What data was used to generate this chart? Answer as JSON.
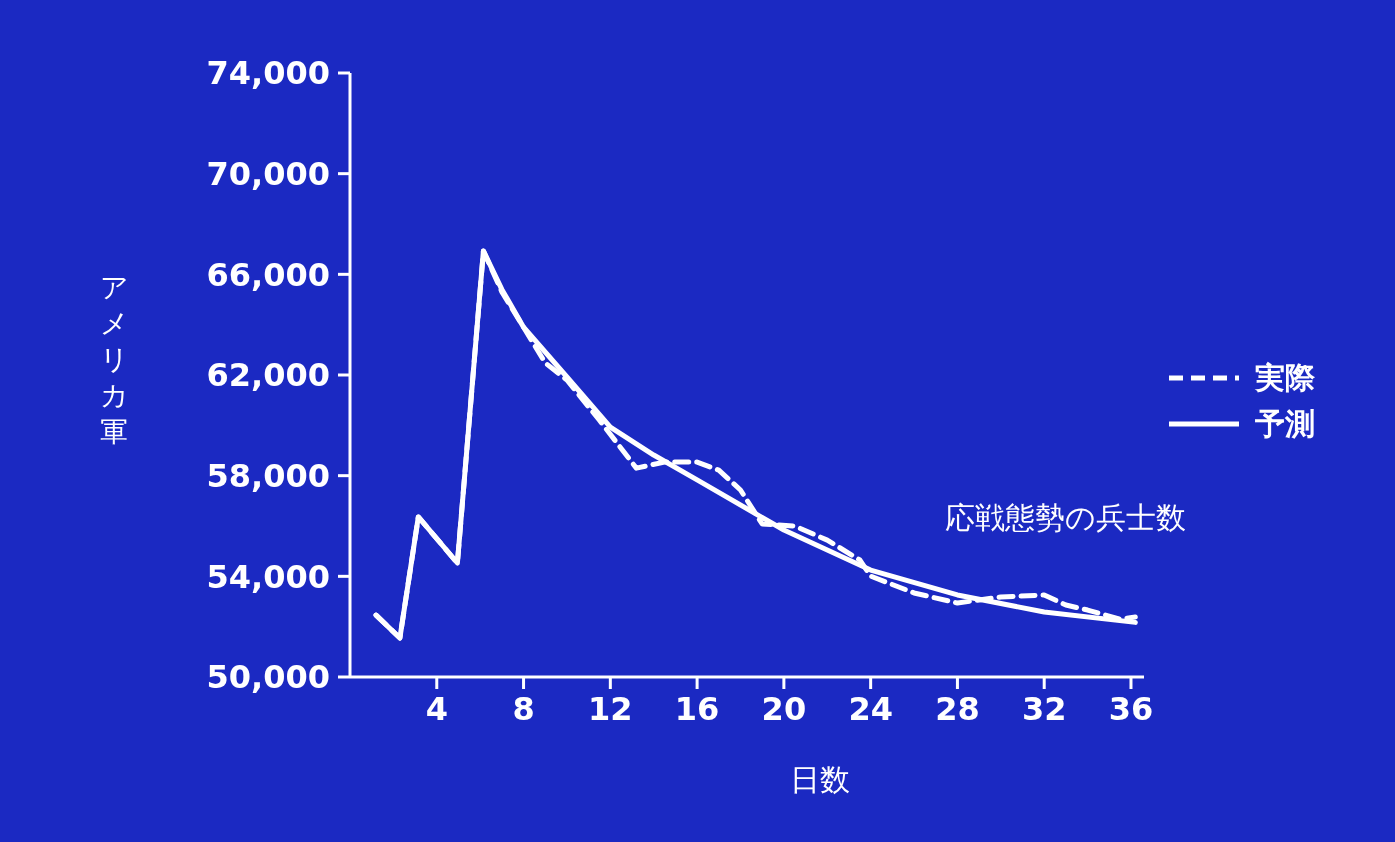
{
  "chart_data": {
    "type": "line",
    "xlabel": "日数",
    "ylabel": "アメリカ軍",
    "annotations": [
      "応戦態勢の兵士数"
    ],
    "series": [
      {
        "name": "実際",
        "color": "#ffffff",
        "line_style": "dashed",
        "x": [
          1.2,
          2.3,
          3.15,
          4.95,
          6.15,
          7,
          8,
          9,
          10,
          11.5,
          13.2,
          14.5,
          16,
          17,
          18,
          19,
          20.5,
          22,
          23.5,
          24,
          26,
          28,
          29,
          30,
          32,
          33,
          34,
          35.5,
          36.2
        ],
        "values": [
          52460,
          51550,
          56360,
          54530,
          66930,
          65300,
          63900,
          62480,
          61800,
          60200,
          58300,
          58540,
          58540,
          58220,
          57430,
          56080,
          56000,
          55440,
          54650,
          54010,
          53340,
          52940,
          53060,
          53180,
          53260,
          52860,
          52660,
          52300,
          52380
        ]
      },
      {
        "name": "予測",
        "color": "#ffffff",
        "line_style": "solid",
        "x": [
          1.2,
          2.3,
          3.15,
          4.95,
          6.15,
          7,
          8,
          10,
          12,
          14,
          16,
          20,
          24,
          28,
          32,
          36.2
        ],
        "values": [
          52460,
          51550,
          56360,
          54530,
          66930,
          65400,
          63900,
          61920,
          59930,
          58820,
          57830,
          55840,
          54250,
          53260,
          52580,
          52170
        ]
      }
    ],
    "xlim": [
      0,
      36.6
    ],
    "xticks": [
      4,
      8,
      12,
      16,
      20,
      24,
      28,
      32,
      36
    ],
    "ylim": [
      50000,
      74000
    ],
    "yticks": [
      {
        "value": 50000,
        "label": "50,000"
      },
      {
        "value": 54000,
        "label": "54,000"
      },
      {
        "value": 58000,
        "label": "58,000"
      },
      {
        "value": 62000,
        "label": "62,000"
      },
      {
        "value": 66000,
        "label": "66,000"
      },
      {
        "value": 70000,
        "label": "70,000"
      },
      {
        "value": 74000,
        "label": "74,000"
      }
    ],
    "grid": false,
    "legend": "right",
    "marker": "none"
  }
}
